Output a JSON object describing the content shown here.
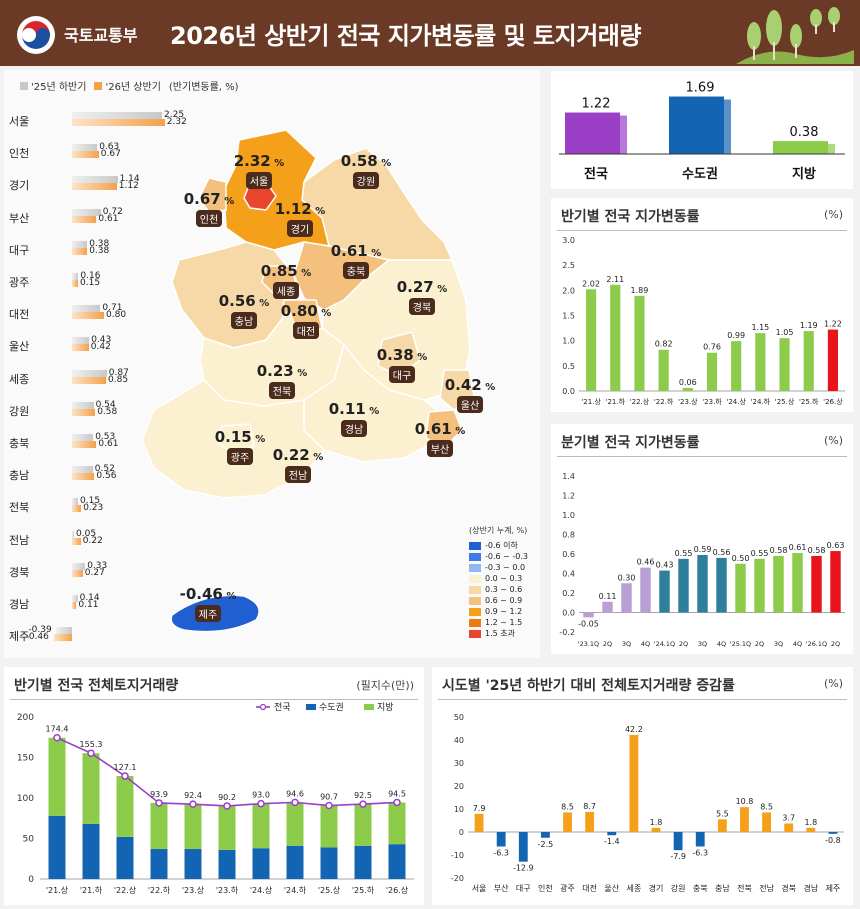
{
  "header": {
    "ministry": "국토교통부",
    "title": "2026년 상반기 전국 지가변동률 및 토지거래량"
  },
  "map_panel": {
    "legend_prev": "'25년 하반기",
    "legend_curr": "'26년 상반기",
    "legend_unit": "(반기변동률, %)",
    "color_prev": "#c8c8c8",
    "color_curr": "#f5a04a",
    "scale_title": "(상반기 누계, %)",
    "scale": [
      {
        "label": "-0.6 이하",
        "color": "#1f5fd1"
      },
      {
        "label": "-0.6 ~ -0.3",
        "color": "#3a7de8"
      },
      {
        "label": "-0.3 ~ 0.0",
        "color": "#8fb8f0"
      },
      {
        "label": "0.0 ~ 0.3",
        "color": "#fbf0cf"
      },
      {
        "label": "0.3 ~ 0.6",
        "color": "#f7d9a8"
      },
      {
        "label": "0.6 ~ 0.9",
        "color": "#f3c07e"
      },
      {
        "label": "0.9 ~ 1.2",
        "color": "#f5a01a"
      },
      {
        "label": "1.2 ~ 1.5",
        "color": "#ee7a12"
      },
      {
        "label": "1.5 초과",
        "color": "#e8452c"
      }
    ],
    "map_regions": [
      {
        "name": "서울",
        "value": "2.32",
        "unit": "%"
      },
      {
        "name": "강원",
        "value": "0.58",
        "unit": "%"
      },
      {
        "name": "인천",
        "value": "0.67",
        "unit": "%"
      },
      {
        "name": "경기",
        "value": "1.12",
        "unit": "%"
      },
      {
        "name": "충북",
        "value": "0.61",
        "unit": "%"
      },
      {
        "name": "세종",
        "value": "0.85",
        "unit": "%"
      },
      {
        "name": "충남",
        "value": "0.56",
        "unit": "%"
      },
      {
        "name": "대전",
        "value": "0.80",
        "unit": "%"
      },
      {
        "name": "경북",
        "value": "0.27",
        "unit": "%"
      },
      {
        "name": "전북",
        "value": "0.23",
        "unit": "%"
      },
      {
        "name": "대구",
        "value": "0.38",
        "unit": "%"
      },
      {
        "name": "울산",
        "value": "0.42",
        "unit": "%"
      },
      {
        "name": "경남",
        "value": "0.11",
        "unit": "%"
      },
      {
        "name": "부산",
        "value": "0.61",
        "unit": "%"
      },
      {
        "name": "광주",
        "value": "0.15",
        "unit": "%"
      },
      {
        "name": "전남",
        "value": "0.22",
        "unit": "%"
      },
      {
        "name": "제주",
        "value": "-0.46",
        "unit": "%"
      }
    ]
  },
  "region_summary": {
    "items": [
      {
        "label": "전국",
        "value": "1.22",
        "color": "#9b3fc6"
      },
      {
        "label": "수도권",
        "value": "1.69",
        "color": "#1464b4"
      },
      {
        "label": "지방",
        "value": "0.38",
        "color": "#8ccc4a"
      }
    ]
  },
  "half_panel": {
    "title": "반기별 전국 지가변동률",
    "unit": "(%)"
  },
  "quarter_panel": {
    "title": "분기별 전국 지가변동률",
    "unit": "(%)"
  },
  "volume_panel": {
    "title": "반기별 전국 전체토지거래량",
    "unit": "(필지수(만))"
  },
  "change_panel": {
    "title": "시도별 '25년 하반기 대비 전체토지거래량 증감률",
    "unit": "(%)"
  },
  "chart_data": [
    {
      "id": "province-rates",
      "type": "bar",
      "orientation": "horizontal",
      "categories": [
        "서울",
        "인천",
        "경기",
        "부산",
        "대구",
        "광주",
        "대전",
        "울산",
        "세종",
        "강원",
        "충북",
        "충남",
        "전북",
        "전남",
        "경북",
        "경남",
        "제주"
      ],
      "series": [
        {
          "name": "'25년 하반기",
          "color": "#c8c8c8",
          "values": [
            2.25,
            0.63,
            1.14,
            0.72,
            0.38,
            0.16,
            0.71,
            0.43,
            0.87,
            0.54,
            0.53,
            0.52,
            0.15,
            0.05,
            0.33,
            0.14,
            -0.39
          ]
        },
        {
          "name": "'26년 상반기",
          "color": "#f5a04a",
          "values": [
            2.32,
            0.67,
            1.12,
            0.61,
            0.38,
            0.15,
            0.8,
            0.42,
            0.85,
            0.58,
            0.61,
            0.56,
            0.23,
            0.22,
            0.27,
            0.11,
            -0.46
          ]
        }
      ],
      "value_labels_prev": [
        "2.25",
        "0.63",
        "1.14",
        "0.72",
        "0.38",
        "0.16",
        "0.71",
        "0.43",
        "0.87",
        "0.54",
        "0.53",
        "0.52",
        "0.15",
        "0.05",
        "0.33",
        "0.14",
        "-0.39"
      ],
      "value_labels_curr": [
        "2.32",
        "0.67",
        "1.12",
        "0.61",
        "0.38",
        "0.15",
        "0.80",
        "0.42",
        "0.85",
        "0.58",
        "0.61",
        "0.56",
        "0.23",
        "0.22",
        "0.27",
        "0.11",
        "-0.46"
      ],
      "ylabel": "(반기변동률, %)"
    },
    {
      "id": "half-yearly",
      "type": "bar",
      "title": "반기별 전국 지가변동률",
      "categories": [
        "'21.상",
        "'21.하",
        "'22.상",
        "'22.하",
        "'23.상",
        "'23.하",
        "'24.상",
        "'24.하",
        "'25.상",
        "'25.하",
        "'26.상"
      ],
      "values": [
        2.02,
        2.11,
        1.89,
        0.82,
        0.06,
        0.76,
        0.99,
        1.15,
        1.05,
        1.19,
        1.22
      ],
      "value_labels": [
        "2.02",
        "2.11",
        "1.89",
        "0.82",
        "0.06",
        "0.76",
        "0.99",
        "1.15",
        "1.05",
        "1.19",
        "1.22"
      ],
      "colors": [
        "#8ccc4a",
        "#8ccc4a",
        "#8ccc4a",
        "#8ccc4a",
        "#8ccc4a",
        "#8ccc4a",
        "#8ccc4a",
        "#8ccc4a",
        "#8ccc4a",
        "#8ccc4a",
        "#e8141c"
      ],
      "ylim": [
        0,
        3.0
      ],
      "yticks": [
        "0.0",
        "0.5",
        "1.0",
        "1.5",
        "2.0",
        "2.5",
        "3.0"
      ],
      "ylabel": "(%)"
    },
    {
      "id": "quarterly",
      "type": "bar",
      "title": "분기별 전국 지가변동률",
      "categories": [
        "'23.1Q",
        "2Q",
        "3Q",
        "4Q",
        "'24.1Q",
        "2Q",
        "3Q",
        "4Q",
        "'25.1Q",
        "2Q",
        "3Q",
        "4Q",
        "'26.1Q",
        "2Q"
      ],
      "tick_labels": [
        "'23.1Q",
        "2Q",
        "3Q",
        "4Q",
        "'24.1Q",
        "2Q",
        "3Q",
        "4Q",
        "'25.1Q",
        "2Q",
        "3Q",
        "4Q",
        "'26.1Q",
        "2Q"
      ],
      "values": [
        -0.05,
        0.11,
        0.3,
        0.46,
        0.43,
        0.55,
        0.59,
        0.56,
        0.5,
        0.55,
        0.58,
        0.61,
        0.58,
        0.63
      ],
      "value_labels": [
        "-0.05",
        "0.11",
        "0.30",
        "0.46",
        "0.43",
        "0.55",
        "0.59",
        "0.56",
        "0.50",
        "0.55",
        "0.58",
        "0.61",
        "0.58",
        "0.63"
      ],
      "colors": [
        "#b8a0d4",
        "#b8a0d4",
        "#b8a0d4",
        "#b8a0d4",
        "#2f7f9c",
        "#2f7f9c",
        "#2f7f9c",
        "#2f7f9c",
        "#8ccc4a",
        "#8ccc4a",
        "#8ccc4a",
        "#8ccc4a",
        "#e8141c",
        "#e8141c"
      ],
      "ylim": [
        -0.2,
        1.4
      ],
      "yticks": [
        "-0.2",
        "0.0",
        "0.2",
        "0.4",
        "0.6",
        "0.8",
        "1.0",
        "1.2",
        "1.4"
      ],
      "ylabel": "(%)"
    },
    {
      "id": "volume",
      "type": "bar",
      "stacked": true,
      "title": "반기별 전국 전체토지거래량",
      "categories": [
        "'21.상",
        "'21.하",
        "'22.상",
        "'22.하",
        "'23.상",
        "'23.하",
        "'24.상",
        "'24.하",
        "'25.상",
        "'25.하",
        "'26.상"
      ],
      "series": [
        {
          "name": "수도권",
          "color": "#1464b4",
          "values": [
            78,
            68,
            52,
            37,
            37,
            36,
            38,
            41,
            39,
            41,
            43
          ]
        },
        {
          "name": "지방",
          "color": "#8ccc4a",
          "values": [
            96.4,
            87.3,
            75.1,
            56.9,
            55.4,
            54.2,
            55.0,
            53.6,
            51.7,
            51.5,
            51.5
          ]
        },
        {
          "name": "전국",
          "color": "#9b3fc6",
          "type": "line",
          "values": [
            174.4,
            155.3,
            127.1,
            93.9,
            92.4,
            90.2,
            93.0,
            94.6,
            90.7,
            92.5,
            94.5
          ]
        }
      ],
      "total_labels": [
        "174.4",
        "155.3",
        "127.1",
        "93.9",
        "92.4",
        "90.2",
        "93.0",
        "94.6",
        "90.7",
        "92.5",
        "94.5"
      ],
      "ylim": [
        0,
        200
      ],
      "yticks": [
        "0",
        "50",
        "100",
        "150",
        "200"
      ],
      "ylabel": "(필지수(만))"
    },
    {
      "id": "province-volume-change",
      "type": "bar",
      "title": "시도별 '25년 하반기 대비 전체토지거래량 증감률",
      "categories": [
        "서울",
        "부산",
        "대구",
        "인천",
        "광주",
        "대전",
        "울산",
        "세종",
        "경기",
        "강원",
        "충북",
        "충남",
        "전북",
        "전남",
        "경북",
        "경남",
        "제주"
      ],
      "values": [
        7.9,
        -6.3,
        -12.9,
        -2.5,
        8.5,
        8.7,
        -1.4,
        42.2,
        1.8,
        -7.9,
        -6.3,
        5.5,
        10.8,
        8.5,
        3.7,
        1.8,
        -0.8
      ],
      "value_labels": [
        "7.9",
        "-6.3",
        "-12.9",
        "-2.5",
        "8.5",
        "8.7",
        "-1.4",
        "42.2",
        "1.8",
        "-7.9",
        "-6.3",
        "5.5",
        "10.8",
        "8.5",
        "3.7",
        "1.8",
        "-0.8"
      ],
      "positive_color": "#f5a01a",
      "negative_color": "#1464b4",
      "ylim": [
        -20,
        50
      ],
      "yticks": [
        "-20",
        "-10",
        "0",
        "10",
        "20",
        "30",
        "40",
        "50"
      ],
      "ylabel": "(%)"
    }
  ]
}
